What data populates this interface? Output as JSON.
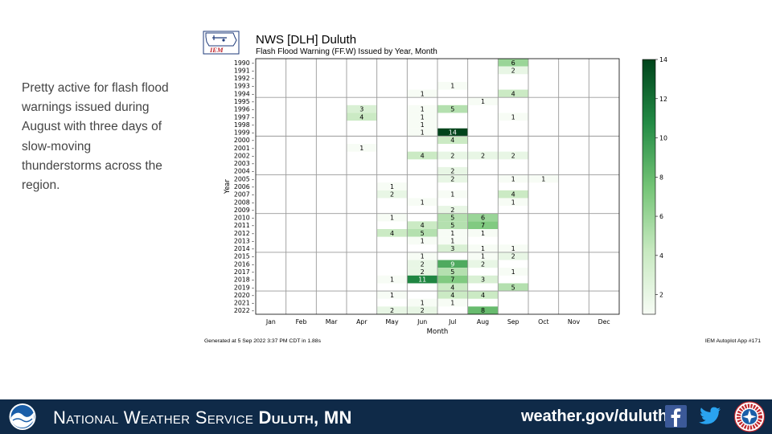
{
  "side_text": {
    "lines": [
      "Pretty active for flash flood",
      "warnings issued during",
      "August with three days of",
      "slow-moving",
      "thunderstorms  across the",
      "region."
    ]
  },
  "logo": {
    "text": "IEM",
    "icon": "iem-logo-icon"
  },
  "chart_data": {
    "type": "heatmap",
    "title": "NWS [DLH] Duluth",
    "subtitle": "Flash Flood Warning (FF.W) Issued by Year, Month",
    "xlabel": "Month",
    "ylabel": "Year",
    "x": [
      "Jan",
      "Feb",
      "Mar",
      "Apr",
      "May",
      "Jun",
      "Jul",
      "Aug",
      "Sep",
      "Oct",
      "Nov",
      "Dec"
    ],
    "y": [
      "1990",
      "1991",
      "1992",
      "1993",
      "1994",
      "1995",
      "1996",
      "1997",
      "1998",
      "1999",
      "2000",
      "2001",
      "2002",
      "2003",
      "2004",
      "2005",
      "2006",
      "2007",
      "2008",
      "2009",
      "2010",
      "2011",
      "2012",
      "2013",
      "2014",
      "2015",
      "2016",
      "2017",
      "2018",
      "2019",
      "2020",
      "2021",
      "2022"
    ],
    "values": [
      [
        0,
        0,
        0,
        0,
        0,
        0,
        0,
        0,
        6,
        0,
        0,
        0
      ],
      [
        0,
        0,
        0,
        0,
        0,
        0,
        0,
        0,
        2,
        0,
        0,
        0
      ],
      [
        0,
        0,
        0,
        0,
        0,
        0,
        0,
        0,
        0,
        0,
        0,
        0
      ],
      [
        0,
        0,
        0,
        0,
        0,
        0,
        1,
        0,
        0,
        0,
        0,
        0
      ],
      [
        0,
        0,
        0,
        0,
        0,
        1,
        0,
        0,
        4,
        0,
        0,
        0
      ],
      [
        0,
        0,
        0,
        0,
        0,
        0,
        0,
        1,
        0,
        0,
        0,
        0
      ],
      [
        0,
        0,
        0,
        3,
        0,
        1,
        5,
        0,
        0,
        0,
        0,
        0
      ],
      [
        0,
        0,
        0,
        4,
        0,
        1,
        0,
        0,
        1,
        0,
        0,
        0
      ],
      [
        0,
        0,
        0,
        0,
        0,
        1,
        0,
        0,
        0,
        0,
        0,
        0
      ],
      [
        0,
        0,
        0,
        0,
        0,
        1,
        14,
        0,
        0,
        0,
        0,
        0
      ],
      [
        0,
        0,
        0,
        0,
        0,
        0,
        4,
        0,
        0,
        0,
        0,
        0
      ],
      [
        0,
        0,
        0,
        1,
        0,
        0,
        0,
        0,
        0,
        0,
        0,
        0
      ],
      [
        0,
        0,
        0,
        0,
        0,
        4,
        2,
        2,
        2,
        0,
        0,
        0
      ],
      [
        0,
        0,
        0,
        0,
        0,
        0,
        0,
        0,
        0,
        0,
        0,
        0
      ],
      [
        0,
        0,
        0,
        0,
        0,
        0,
        2,
        0,
        0,
        0,
        0,
        0
      ],
      [
        0,
        0,
        0,
        0,
        0,
        0,
        2,
        0,
        1,
        1,
        0,
        0
      ],
      [
        0,
        0,
        0,
        0,
        1,
        0,
        0,
        0,
        0,
        0,
        0,
        0
      ],
      [
        0,
        0,
        0,
        0,
        2,
        0,
        1,
        0,
        4,
        0,
        0,
        0
      ],
      [
        0,
        0,
        0,
        0,
        0,
        1,
        0,
        0,
        1,
        0,
        0,
        0
      ],
      [
        0,
        0,
        0,
        0,
        0,
        0,
        2,
        0,
        0,
        0,
        0,
        0
      ],
      [
        0,
        0,
        0,
        0,
        1,
        0,
        5,
        6,
        0,
        0,
        0,
        0
      ],
      [
        0,
        0,
        0,
        0,
        0,
        4,
        5,
        7,
        0,
        0,
        0,
        0
      ],
      [
        0,
        0,
        0,
        0,
        4,
        5,
        1,
        1,
        0,
        0,
        0,
        0
      ],
      [
        0,
        0,
        0,
        0,
        0,
        1,
        1,
        0,
        0,
        0,
        0,
        0
      ],
      [
        0,
        0,
        0,
        0,
        0,
        0,
        3,
        1,
        1,
        0,
        0,
        0
      ],
      [
        0,
        0,
        0,
        0,
        0,
        1,
        0,
        1,
        2,
        0,
        0,
        0
      ],
      [
        0,
        0,
        0,
        0,
        0,
        2,
        9,
        2,
        0,
        0,
        0,
        0
      ],
      [
        0,
        0,
        0,
        0,
        0,
        2,
        5,
        0,
        1,
        0,
        0,
        0
      ],
      [
        0,
        0,
        0,
        0,
        1,
        11,
        7,
        3,
        0,
        0,
        0,
        0
      ],
      [
        0,
        0,
        0,
        0,
        0,
        0,
        4,
        0,
        5,
        0,
        0,
        0
      ],
      [
        0,
        0,
        0,
        0,
        1,
        0,
        4,
        4,
        0,
        0,
        0,
        0
      ],
      [
        0,
        0,
        0,
        0,
        0,
        1,
        1,
        0,
        0,
        0,
        0,
        0
      ],
      [
        0,
        0,
        0,
        0,
        2,
        2,
        0,
        8,
        0,
        0,
        0,
        0
      ]
    ],
    "colorbar": {
      "range": [
        1,
        14
      ],
      "ticks": [
        2,
        4,
        6,
        8,
        10,
        12,
        14
      ],
      "low_color": "#f7fcf5",
      "high_color": "#00441b"
    },
    "grid": true
  },
  "footnotes": {
    "generated": "Generated at 5 Sep 2022 3:37 PM CDT in 1.88s",
    "app": "IEM Autoplot App #171"
  },
  "footer": {
    "title_prefix": "National Weather Service",
    "title_office": "Duluth, MN",
    "url": "weather.gov/duluth",
    "background": "#0f2a48",
    "icons": [
      "noaa-logo-icon",
      "facebook-icon",
      "twitter-icon",
      "nws-logo-icon"
    ]
  }
}
